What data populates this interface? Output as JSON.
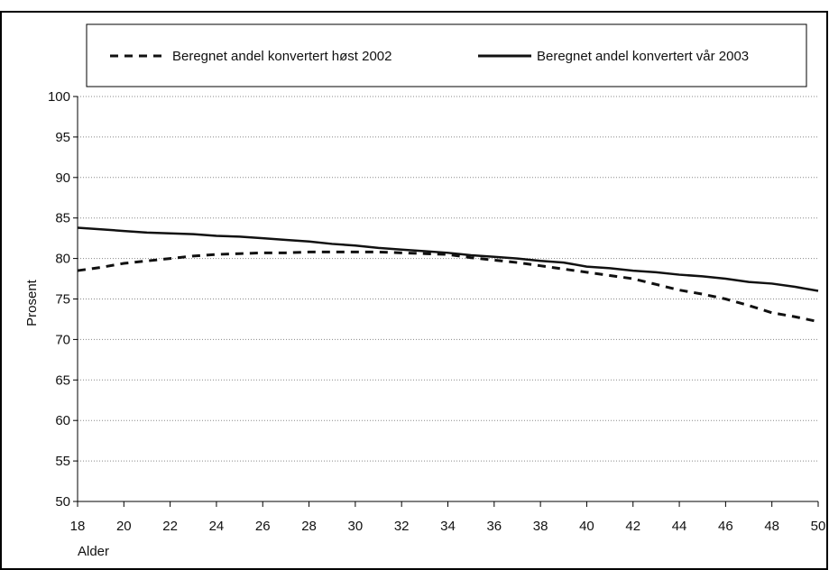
{
  "chart_data": {
    "type": "line",
    "xlabel": "Alder",
    "ylabel": "Prosent",
    "xlim": [
      18,
      50
    ],
    "ylim": [
      50,
      100
    ],
    "x_ticks": [
      18,
      20,
      22,
      24,
      26,
      28,
      30,
      32,
      34,
      36,
      38,
      40,
      42,
      44,
      46,
      48,
      50
    ],
    "y_ticks": [
      50,
      55,
      60,
      65,
      70,
      75,
      80,
      85,
      90,
      95,
      100
    ],
    "grid": "horizontal dotted",
    "legend_position": "top",
    "x": [
      18,
      19,
      20,
      21,
      22,
      23,
      24,
      25,
      26,
      27,
      28,
      29,
      30,
      31,
      32,
      33,
      34,
      35,
      36,
      37,
      38,
      39,
      40,
      41,
      42,
      43,
      44,
      45,
      46,
      47,
      48,
      49,
      50
    ],
    "series": [
      {
        "name": "Beregnet andel konvertert høst 2002",
        "style": "dashed",
        "color": "#111111",
        "values": [
          78.5,
          78.9,
          79.4,
          79.7,
          80.0,
          80.3,
          80.5,
          80.6,
          80.7,
          80.7,
          80.8,
          80.8,
          80.8,
          80.8,
          80.7,
          80.6,
          80.5,
          80.1,
          79.8,
          79.5,
          79.1,
          78.7,
          78.3,
          77.9,
          77.5,
          76.8,
          76.1,
          75.6,
          75.0,
          74.2,
          73.3,
          72.8,
          72.2
        ]
      },
      {
        "name": "Beregnet andel konvertert vår 2003",
        "style": "solid",
        "color": "#111111",
        "values": [
          83.8,
          83.6,
          83.4,
          83.2,
          83.1,
          83.0,
          82.8,
          82.7,
          82.5,
          82.3,
          82.1,
          81.8,
          81.6,
          81.3,
          81.1,
          80.9,
          80.7,
          80.4,
          80.2,
          80.0,
          79.7,
          79.5,
          79.0,
          78.8,
          78.5,
          78.3,
          78.0,
          77.8,
          77.5,
          77.1,
          76.9,
          76.5,
          76.0
        ]
      }
    ]
  }
}
